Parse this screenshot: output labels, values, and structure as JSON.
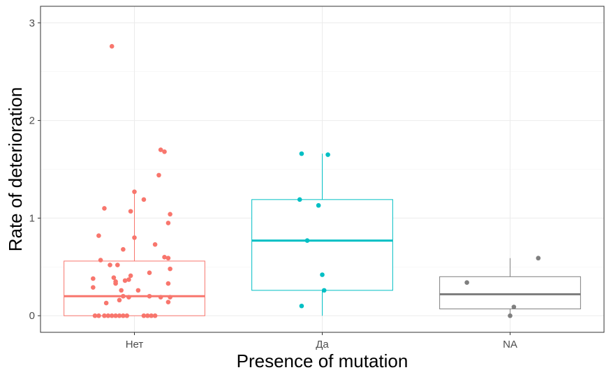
{
  "chart_data": {
    "type": "boxplot",
    "xlabel": "Presence of mutation",
    "ylabel": "Rate of deterioration",
    "categories": [
      "Нет",
      "Да",
      "NA"
    ],
    "ylim": [
      -0.17,
      3.17
    ],
    "yticks": [
      0,
      1,
      2,
      3
    ],
    "grid": true,
    "legend": "none",
    "colors": {
      "Нет": "#F8766D",
      "Да": "#00BFC4",
      "NA": "#7F7F7F"
    },
    "boxes": [
      {
        "category": "Нет",
        "q1": 0.0,
        "median": 0.2,
        "q3": 0.56,
        "whisker_low": 0.0,
        "whisker_high": 1.27
      },
      {
        "category": "Да",
        "q1": 0.26,
        "median": 0.77,
        "q3": 1.19,
        "whisker_low": 0.0,
        "whisker_high": 1.66
      },
      {
        "category": "NA",
        "q1": 0.07,
        "median": 0.22,
        "q3": 0.4,
        "whisker_low": 0.0,
        "whisker_high": 0.59
      }
    ],
    "points": [
      {
        "category": "Нет",
        "jitter": -0.12,
        "y": 2.76
      },
      {
        "category": "Нет",
        "jitter": 0.14,
        "y": 1.7
      },
      {
        "category": "Нет",
        "jitter": 0.16,
        "y": 1.68
      },
      {
        "category": "Нет",
        "jitter": 0.13,
        "y": 1.44
      },
      {
        "category": "Нет",
        "jitter": 0.0,
        "y": 1.27
      },
      {
        "category": "Нет",
        "jitter": 0.05,
        "y": 1.19
      },
      {
        "category": "Нет",
        "jitter": -0.16,
        "y": 1.1
      },
      {
        "category": "Нет",
        "jitter": -0.02,
        "y": 1.07
      },
      {
        "category": "Нет",
        "jitter": 0.19,
        "y": 1.04
      },
      {
        "category": "Нет",
        "jitter": 0.18,
        "y": 0.95
      },
      {
        "category": "Нет",
        "jitter": -0.19,
        "y": 0.82
      },
      {
        "category": "Нет",
        "jitter": 0.0,
        "y": 0.8
      },
      {
        "category": "Нет",
        "jitter": 0.11,
        "y": 0.73
      },
      {
        "category": "Нет",
        "jitter": -0.06,
        "y": 0.68
      },
      {
        "category": "Нет",
        "jitter": 0.16,
        "y": 0.6
      },
      {
        "category": "Нет",
        "jitter": 0.18,
        "y": 0.59
      },
      {
        "category": "Нет",
        "jitter": -0.18,
        "y": 0.57
      },
      {
        "category": "Нет",
        "jitter": -0.13,
        "y": 0.52
      },
      {
        "category": "Нет",
        "jitter": -0.09,
        "y": 0.52
      },
      {
        "category": "Нет",
        "jitter": 0.19,
        "y": 0.48
      },
      {
        "category": "Нет",
        "jitter": 0.08,
        "y": 0.44
      },
      {
        "category": "Нет",
        "jitter": -0.02,
        "y": 0.41
      },
      {
        "category": "Нет",
        "jitter": -0.11,
        "y": 0.39
      },
      {
        "category": "Нет",
        "jitter": -0.22,
        "y": 0.38
      },
      {
        "category": "Нет",
        "jitter": -0.03,
        "y": 0.37
      },
      {
        "category": "Нет",
        "jitter": -0.05,
        "y": 0.36
      },
      {
        "category": "Нет",
        "jitter": -0.1,
        "y": 0.35
      },
      {
        "category": "Нет",
        "jitter": -0.1,
        "y": 0.33
      },
      {
        "category": "Нет",
        "jitter": 0.18,
        "y": 0.33
      },
      {
        "category": "Нет",
        "jitter": -0.22,
        "y": 0.29
      },
      {
        "category": "Нет",
        "jitter": 0.02,
        "y": 0.26
      },
      {
        "category": "Нет",
        "jitter": -0.07,
        "y": 0.26
      },
      {
        "category": "Нет",
        "jitter": -0.06,
        "y": 0.2
      },
      {
        "category": "Нет",
        "jitter": 0.08,
        "y": 0.2
      },
      {
        "category": "Нет",
        "jitter": -0.03,
        "y": 0.19
      },
      {
        "category": "Нет",
        "jitter": 0.14,
        "y": 0.19
      },
      {
        "category": "Нет",
        "jitter": 0.19,
        "y": 0.19
      },
      {
        "category": "Нет",
        "jitter": -0.08,
        "y": 0.16
      },
      {
        "category": "Нет",
        "jitter": 0.18,
        "y": 0.14
      },
      {
        "category": "Нет",
        "jitter": -0.15,
        "y": 0.13
      },
      {
        "category": "Нет",
        "jitter": -0.21,
        "y": 0.0
      },
      {
        "category": "Нет",
        "jitter": -0.19,
        "y": 0.0
      },
      {
        "category": "Нет",
        "jitter": -0.16,
        "y": 0.0
      },
      {
        "category": "Нет",
        "jitter": -0.14,
        "y": 0.0
      },
      {
        "category": "Нет",
        "jitter": -0.12,
        "y": 0.0
      },
      {
        "category": "Нет",
        "jitter": -0.1,
        "y": 0.0
      },
      {
        "category": "Нет",
        "jitter": -0.08,
        "y": 0.0
      },
      {
        "category": "Нет",
        "jitter": -0.06,
        "y": 0.0
      },
      {
        "category": "Нет",
        "jitter": -0.04,
        "y": 0.0
      },
      {
        "category": "Нет",
        "jitter": 0.05,
        "y": 0.0
      },
      {
        "category": "Нет",
        "jitter": 0.07,
        "y": 0.0
      },
      {
        "category": "Нет",
        "jitter": 0.09,
        "y": 0.0
      },
      {
        "category": "Нет",
        "jitter": 0.11,
        "y": 0.0
      },
      {
        "category": "Да",
        "jitter": -0.11,
        "y": 1.66
      },
      {
        "category": "Да",
        "jitter": 0.03,
        "y": 1.65
      },
      {
        "category": "Да",
        "jitter": -0.12,
        "y": 1.19
      },
      {
        "category": "Да",
        "jitter": -0.02,
        "y": 1.13
      },
      {
        "category": "Да",
        "jitter": -0.08,
        "y": 0.77
      },
      {
        "category": "Да",
        "jitter": 0.0,
        "y": 0.42
      },
      {
        "category": "Да",
        "jitter": 0.01,
        "y": 0.26
      },
      {
        "category": "Да",
        "jitter": -0.11,
        "y": 0.1
      },
      {
        "category": "NA",
        "jitter": -0.23,
        "y": 0.34
      },
      {
        "category": "NA",
        "jitter": 0.15,
        "y": 0.59
      },
      {
        "category": "NA",
        "jitter": 0.02,
        "y": 0.09
      },
      {
        "category": "NA",
        "jitter": 0.0,
        "y": 0.0
      }
    ]
  }
}
